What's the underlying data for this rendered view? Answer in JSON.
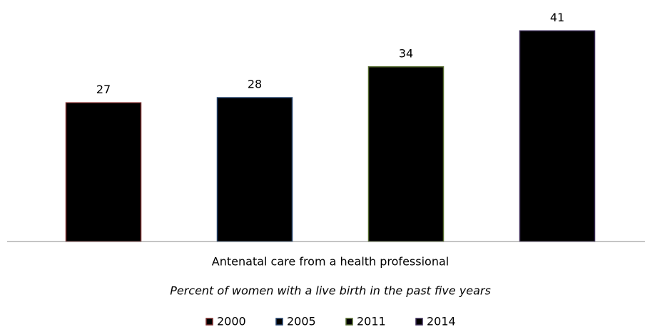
{
  "chart_data": {
    "type": "bar",
    "categories": [
      "Antenatal care from a health professional"
    ],
    "subtitle": "Percent of women with a live birth in the past five years",
    "series": [
      {
        "name": "2000",
        "color": "#7a2b2b",
        "values": [
          27
        ]
      },
      {
        "name": "2005",
        "color": "#22406a",
        "values": [
          28
        ]
      },
      {
        "name": "2011",
        "color": "#556b2f",
        "values": [
          34
        ]
      },
      {
        "name": "2014",
        "color": "#3a2a55",
        "values": [
          41
        ]
      }
    ],
    "ylim": [
      0,
      47
    ],
    "legend": "bottom"
  }
}
